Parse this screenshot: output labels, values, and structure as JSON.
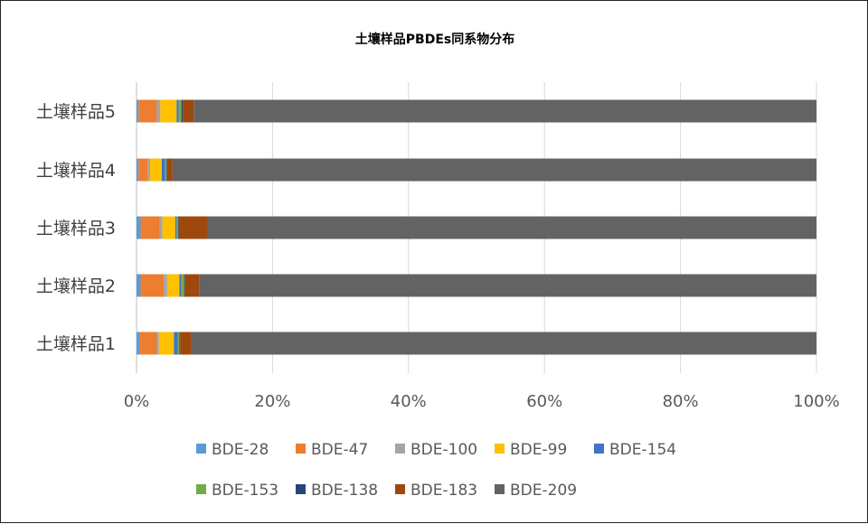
{
  "chart_data": {
    "type": "bar",
    "orientation": "horizontal",
    "stacked": "percent",
    "title": "土壤样品PBDEs同系物分布",
    "categories": [
      "土壤样品1",
      "土壤样品2",
      "土壤样品3",
      "土壤样品4",
      "土壤样品5"
    ],
    "xlim": [
      0,
      100
    ],
    "x_ticks": [
      "0%",
      "20%",
      "40%",
      "60%",
      "80%",
      "100%"
    ],
    "grid": true,
    "legend_position": "bottom",
    "series": [
      {
        "name": "BDE-28",
        "color": "#5b9bd5",
        "values": [
          0.4,
          0.6,
          0.6,
          0.3,
          0.3
        ]
      },
      {
        "name": "BDE-47",
        "color": "#ed7d31",
        "values": [
          2.6,
          3.4,
          2.8,
          1.4,
          2.7
        ]
      },
      {
        "name": "BDE-100",
        "color": "#a5a5a5",
        "values": [
          0.3,
          0.5,
          0.4,
          0.3,
          0.5
        ]
      },
      {
        "name": "BDE-99",
        "color": "#ffc000",
        "values": [
          2.2,
          1.8,
          1.9,
          1.7,
          2.4
        ]
      },
      {
        "name": "BDE-154",
        "color": "#4472c4",
        "values": [
          0.6,
          0.3,
          0.2,
          0.5,
          0.3
        ]
      },
      {
        "name": "BDE-153",
        "color": "#70ad47",
        "values": [
          0.2,
          0.4,
          0.2,
          0.2,
          0.4
        ]
      },
      {
        "name": "BDE-138",
        "color": "#264478",
        "values": [
          0.1,
          0.1,
          0.1,
          0.1,
          0.2
        ]
      },
      {
        "name": "BDE-183",
        "color": "#9e480e",
        "values": [
          1.7,
          2.1,
          4.3,
          0.8,
          1.6
        ]
      },
      {
        "name": "BDE-209",
        "color": "#636363",
        "values": [
          91.9,
          90.8,
          89.5,
          94.7,
          91.6
        ]
      }
    ]
  }
}
